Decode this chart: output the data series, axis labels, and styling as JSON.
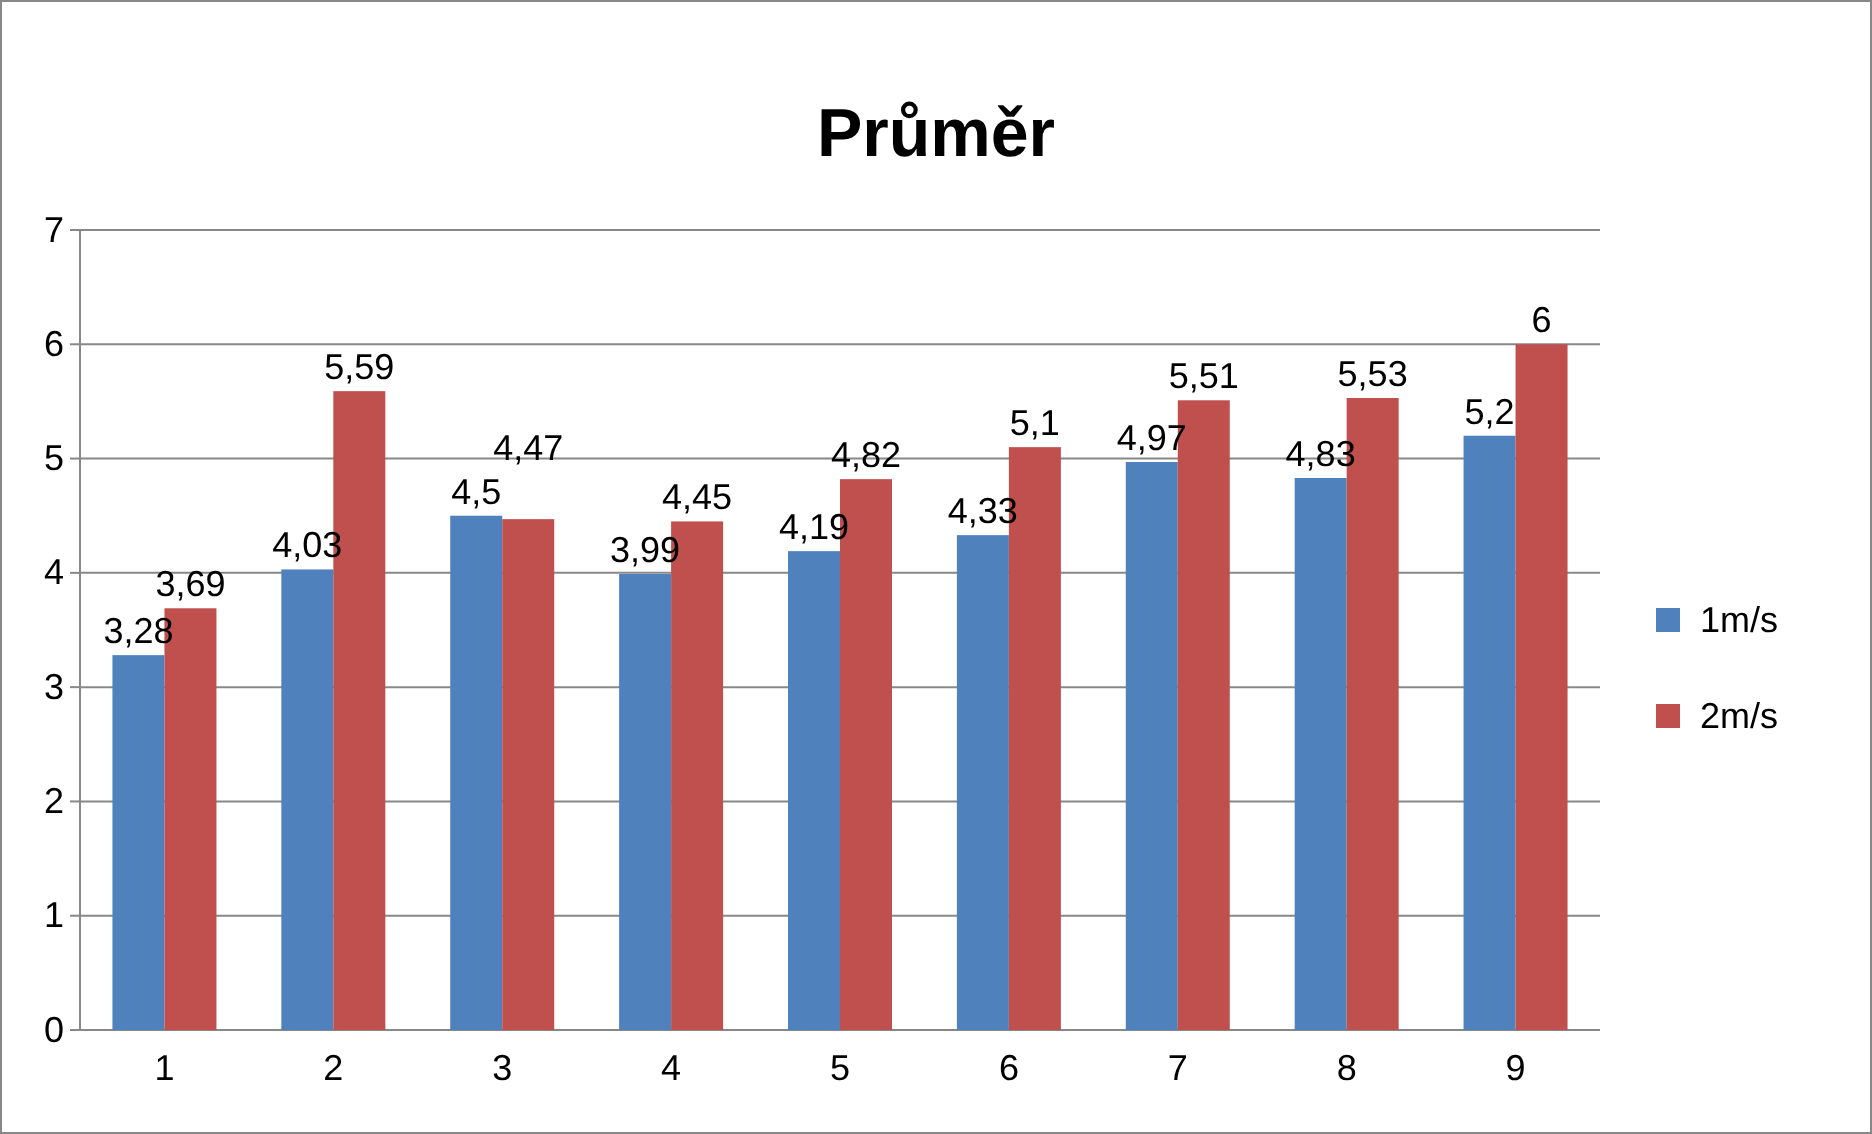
{
  "chart_data": {
    "type": "bar",
    "title": "Průměr",
    "categories": [
      "1",
      "2",
      "3",
      "4",
      "5",
      "6",
      "7",
      "8",
      "9"
    ],
    "series": [
      {
        "name": "1m/s",
        "color": "#4f81bd",
        "values": [
          3.28,
          4.03,
          4.5,
          3.99,
          4.19,
          4.33,
          4.97,
          4.83,
          5.2
        ],
        "value_labels": [
          "3,28",
          "4,03",
          "4,5",
          "3,99",
          "4,19",
          "4,33",
          "4,97",
          "4,83",
          "5,2"
        ]
      },
      {
        "name": "2m/s",
        "color": "#c0504d",
        "values": [
          3.69,
          5.59,
          4.47,
          4.45,
          4.82,
          5.1,
          5.51,
          5.53,
          6
        ],
        "value_labels": [
          "3,69",
          "5,59",
          "4,47",
          "4,45",
          "4,82",
          "5,1",
          "5,51",
          "5,53",
          "6"
        ]
      }
    ],
    "ylim": [
      0,
      7
    ],
    "yticks": [
      0,
      1,
      2,
      3,
      4,
      5,
      6,
      7
    ],
    "grid": "y",
    "legend": "right"
  }
}
